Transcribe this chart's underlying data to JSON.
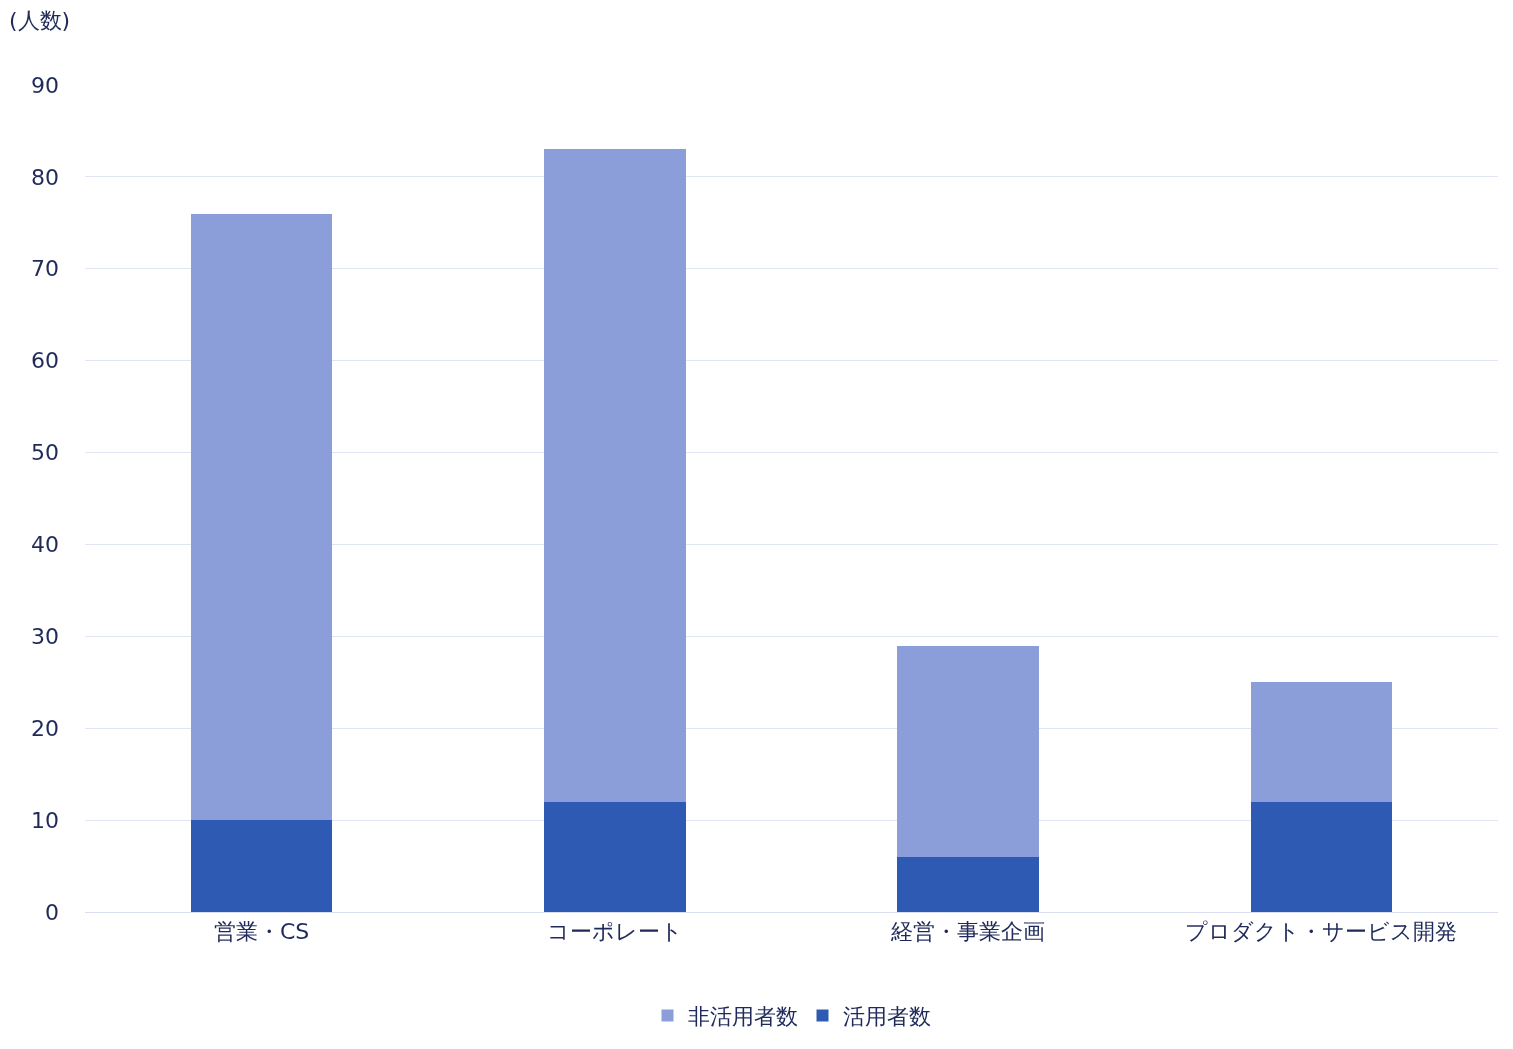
{
  "chart_data": {
    "type": "bar",
    "stacked": true,
    "ylabel": "(人数)",
    "categories": [
      "営業・CS",
      "コーポレート",
      "経営・事業企画",
      "プロダクト・サービス開発"
    ],
    "series": [
      {
        "name": "活用者数",
        "color": "#2e5ab4",
        "values": [
          10,
          12,
          6,
          12
        ]
      },
      {
        "name": "非活用者数",
        "color": "#8c9ed9",
        "values": [
          66,
          71,
          23,
          13
        ]
      }
    ],
    "ylim": [
      0,
      90
    ],
    "yticks": [
      0,
      10,
      20,
      30,
      40,
      50,
      60,
      70,
      80,
      90
    ],
    "grid": "y",
    "legend": "bottom"
  }
}
